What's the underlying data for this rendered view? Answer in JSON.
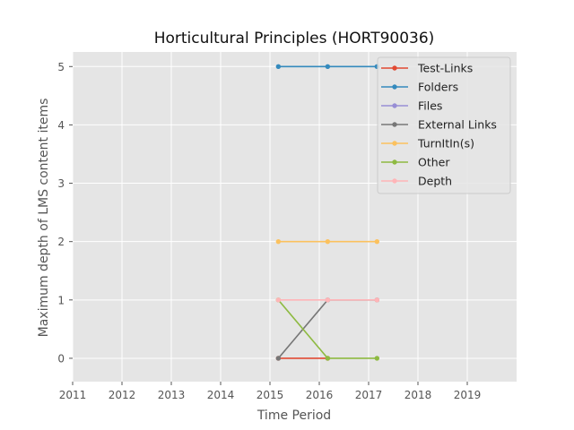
{
  "chart_data": {
    "type": "line",
    "title": "Horticultural Principles (HORT90036)",
    "xlabel": "Time Period",
    "ylabel": "Maximum depth of LMS content items",
    "xlim": [
      2011,
      2020
    ],
    "ylim": [
      -0.4,
      5.25
    ],
    "xticks": [
      2011,
      2012,
      2013,
      2014,
      2015,
      2016,
      2017,
      2018,
      2019
    ],
    "yticks": [
      0,
      1,
      2,
      3,
      4,
      5
    ],
    "grid": true,
    "legend_position": "top-right",
    "x": [
      2015.17,
      2016.17,
      2017.17
    ],
    "series": [
      {
        "name": "Test-Links",
        "color": "#e24a33",
        "values": [
          0,
          0,
          null
        ]
      },
      {
        "name": "Folders",
        "color": "#348abd",
        "values": [
          5,
          5,
          5
        ]
      },
      {
        "name": "Files",
        "color": "#988ed5",
        "values": [
          null,
          null,
          null
        ]
      },
      {
        "name": "External Links",
        "color": "#777777",
        "values": [
          0,
          1,
          1
        ]
      },
      {
        "name": "TurnItIn(s)",
        "color": "#fbc15e",
        "values": [
          2,
          2,
          2
        ]
      },
      {
        "name": "Other",
        "color": "#8eba42",
        "values": [
          1,
          0,
          0
        ]
      },
      {
        "name": "Depth",
        "color": "#ffb5b8",
        "values": [
          1,
          1,
          1
        ]
      }
    ]
  }
}
